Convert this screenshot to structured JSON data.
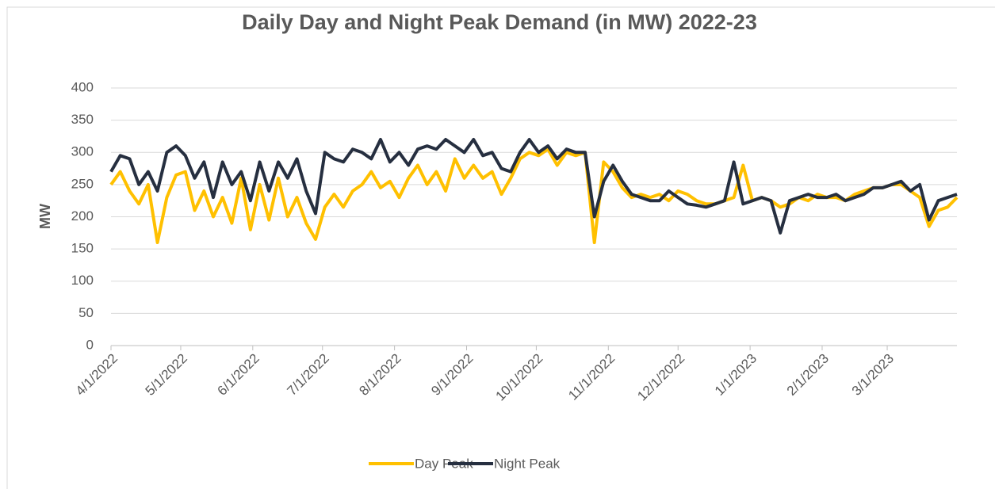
{
  "chart_data": {
    "type": "line",
    "title": "Daily Day and Night Peak Demand (in MW) 2022-23",
    "ylabel": "MW",
    "x": [
      "4/1/2022",
      "4/5/2022",
      "4/9/2022",
      "4/13/2022",
      "4/17/2022",
      "4/21/2022",
      "4/25/2022",
      "4/29/2022",
      "5/3/2022",
      "5/7/2022",
      "5/11/2022",
      "5/15/2022",
      "5/19/2022",
      "5/23/2022",
      "5/27/2022",
      "5/31/2022",
      "6/4/2022",
      "6/8/2022",
      "6/12/2022",
      "6/16/2022",
      "6/20/2022",
      "6/24/2022",
      "6/28/2022",
      "7/2/2022",
      "7/6/2022",
      "7/10/2022",
      "7/14/2022",
      "7/18/2022",
      "7/22/2022",
      "7/26/2022",
      "7/30/2022",
      "8/3/2022",
      "8/7/2022",
      "8/11/2022",
      "8/15/2022",
      "8/19/2022",
      "8/23/2022",
      "8/27/2022",
      "8/31/2022",
      "9/4/2022",
      "9/8/2022",
      "9/12/2022",
      "9/16/2022",
      "9/20/2022",
      "9/24/2022",
      "9/28/2022",
      "10/2/2022",
      "10/6/2022",
      "10/10/2022",
      "10/14/2022",
      "10/18/2022",
      "10/22/2022",
      "10/26/2022",
      "10/30/2022",
      "11/3/2022",
      "11/7/2022",
      "11/11/2022",
      "11/15/2022",
      "11/19/2022",
      "11/23/2022",
      "11/27/2022",
      "12/1/2022",
      "12/5/2022",
      "12/9/2022",
      "12/13/2022",
      "12/17/2022",
      "12/21/2022",
      "12/25/2022",
      "12/29/2022",
      "1/2/2023",
      "1/6/2023",
      "1/10/2023",
      "1/14/2023",
      "1/18/2023",
      "1/22/2023",
      "1/26/2023",
      "1/30/2023",
      "2/3/2023",
      "2/7/2023",
      "2/11/2023",
      "2/15/2023",
      "2/19/2023",
      "2/23/2023",
      "2/27/2023",
      "3/3/2023",
      "3/7/2023",
      "3/11/2023",
      "3/15/2023",
      "3/19/2023",
      "3/23/2023",
      "3/27/2023",
      "3/31/2023"
    ],
    "series": [
      {
        "name": "Day Peak",
        "color": "#FFC000",
        "values": [
          250,
          270,
          240,
          220,
          250,
          160,
          230,
          265,
          270,
          210,
          240,
          200,
          230,
          190,
          260,
          180,
          250,
          195,
          260,
          200,
          230,
          190,
          165,
          215,
          235,
          215,
          240,
          250,
          270,
          245,
          255,
          230,
          260,
          280,
          250,
          270,
          240,
          290,
          260,
          280,
          260,
          270,
          235,
          260,
          290,
          300,
          295,
          305,
          280,
          300,
          295,
          300,
          160,
          285,
          270,
          245,
          230,
          235,
          230,
          235,
          225,
          240,
          235,
          225,
          220,
          220,
          225,
          230,
          280,
          225,
          230,
          225,
          215,
          220,
          230,
          225,
          235,
          230,
          230,
          225,
          235,
          240,
          245,
          245,
          250,
          250,
          240,
          230,
          185,
          210,
          215,
          230
        ]
      },
      {
        "name": "Night Peak",
        "color": "#262F40",
        "values": [
          270,
          295,
          290,
          250,
          270,
          240,
          300,
          310,
          295,
          260,
          285,
          230,
          285,
          250,
          270,
          225,
          285,
          240,
          285,
          260,
          290,
          240,
          205,
          300,
          290,
          285,
          305,
          300,
          290,
          320,
          285,
          300,
          280,
          305,
          310,
          305,
          320,
          310,
          300,
          320,
          295,
          300,
          275,
          270,
          300,
          320,
          300,
          310,
          290,
          305,
          300,
          300,
          200,
          255,
          280,
          255,
          235,
          230,
          225,
          225,
          240,
          230,
          220,
          218,
          215,
          220,
          225,
          285,
          220,
          225,
          230,
          225,
          175,
          225,
          230,
          235,
          230,
          230,
          235,
          225,
          230,
          235,
          245,
          245,
          250,
          255,
          240,
          250,
          195,
          225,
          230,
          235
        ]
      }
    ],
    "xlim": [
      "4/1/2022",
      "3/31/2023"
    ],
    "xticks": [
      "4/1/2022",
      "5/1/2022",
      "6/1/2022",
      "7/1/2022",
      "8/1/2022",
      "9/1/2022",
      "10/1/2022",
      "11/1/2022",
      "12/1/2022",
      "1/1/2023",
      "2/1/2023",
      "3/1/2023"
    ],
    "ylim": [
      0,
      400
    ],
    "yticks": [
      0,
      50,
      100,
      150,
      200,
      250,
      300,
      350,
      400
    ],
    "grid": true,
    "legend": "bottom"
  }
}
